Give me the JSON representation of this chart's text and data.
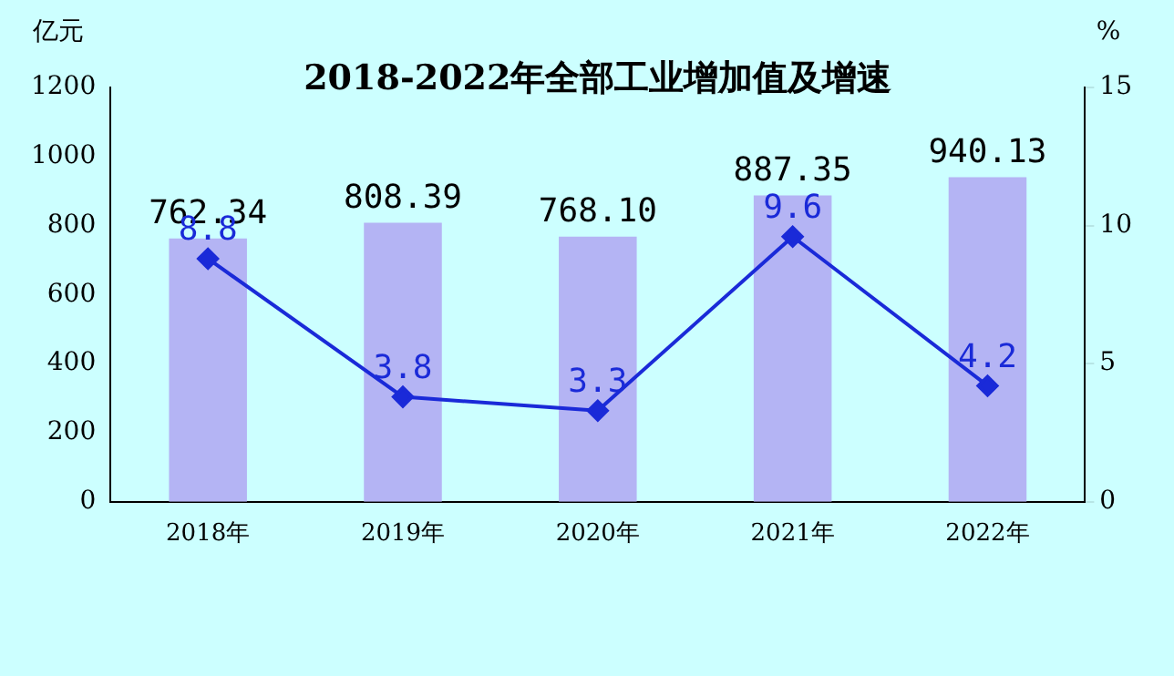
{
  "chart_data": {
    "type": "bar",
    "title": "2018-2022年全部工业增加值及增速",
    "ylabel": "亿元",
    "y2label": "%",
    "categories": [
      "2018年",
      "2019年",
      "2020年",
      "2021年",
      "2022年"
    ],
    "series": [
      {
        "color": "#b4b4f4",
        "values": [
          762.34,
          808.39,
          768.1,
          887.35,
          940.13
        ],
        "value_labels": [
          "762.34",
          "808.39",
          "768.10",
          "887.35",
          "940.13"
        ]
      },
      {
        "type": "line",
        "axis": "y2",
        "color": "#1a2ad8",
        "values": [
          8.8,
          3.8,
          3.3,
          9.6,
          4.2
        ],
        "value_labels": [
          "8.8",
          "3.8",
          "3.3",
          "9.6",
          "4.2"
        ]
      }
    ],
    "ylim": [
      0,
      1200
    ],
    "yticks": [
      0,
      200,
      400,
      600,
      800,
      1000,
      1200
    ],
    "y2lim": [
      0,
      15
    ],
    "y2ticks": [
      0,
      5,
      10,
      15
    ],
    "grid": false,
    "legend": false,
    "marker": "diamond",
    "line_style": "solid"
  }
}
